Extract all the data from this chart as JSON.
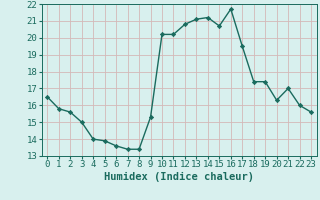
{
  "x": [
    0,
    1,
    2,
    3,
    4,
    5,
    6,
    7,
    8,
    9,
    10,
    11,
    12,
    13,
    14,
    15,
    16,
    17,
    18,
    19,
    20,
    21,
    22,
    23
  ],
  "y": [
    16.5,
    15.8,
    15.6,
    15.0,
    14.0,
    13.9,
    13.6,
    13.4,
    13.4,
    15.3,
    20.2,
    20.2,
    20.8,
    21.1,
    21.2,
    20.7,
    21.7,
    19.5,
    17.4,
    17.4,
    16.3,
    17.0,
    16.0,
    15.6
  ],
  "line_color": "#1a6b5e",
  "marker": "D",
  "marker_size": 2.2,
  "bg_color": "#d8f0ee",
  "grid_color": "#b8dcd8",
  "title": "",
  "xlabel": "Humidex (Indice chaleur)",
  "ylabel": "",
  "xlim": [
    -0.5,
    23.5
  ],
  "ylim": [
    13,
    22
  ],
  "yticks": [
    13,
    14,
    15,
    16,
    17,
    18,
    19,
    20,
    21,
    22
  ],
  "xticks": [
    0,
    1,
    2,
    3,
    4,
    5,
    6,
    7,
    8,
    9,
    10,
    11,
    12,
    13,
    14,
    15,
    16,
    17,
    18,
    19,
    20,
    21,
    22,
    23
  ],
  "xlabel_fontsize": 7.5,
  "tick_fontsize": 6.5,
  "label_color": "#1a6b5e",
  "linewidth": 1.0
}
